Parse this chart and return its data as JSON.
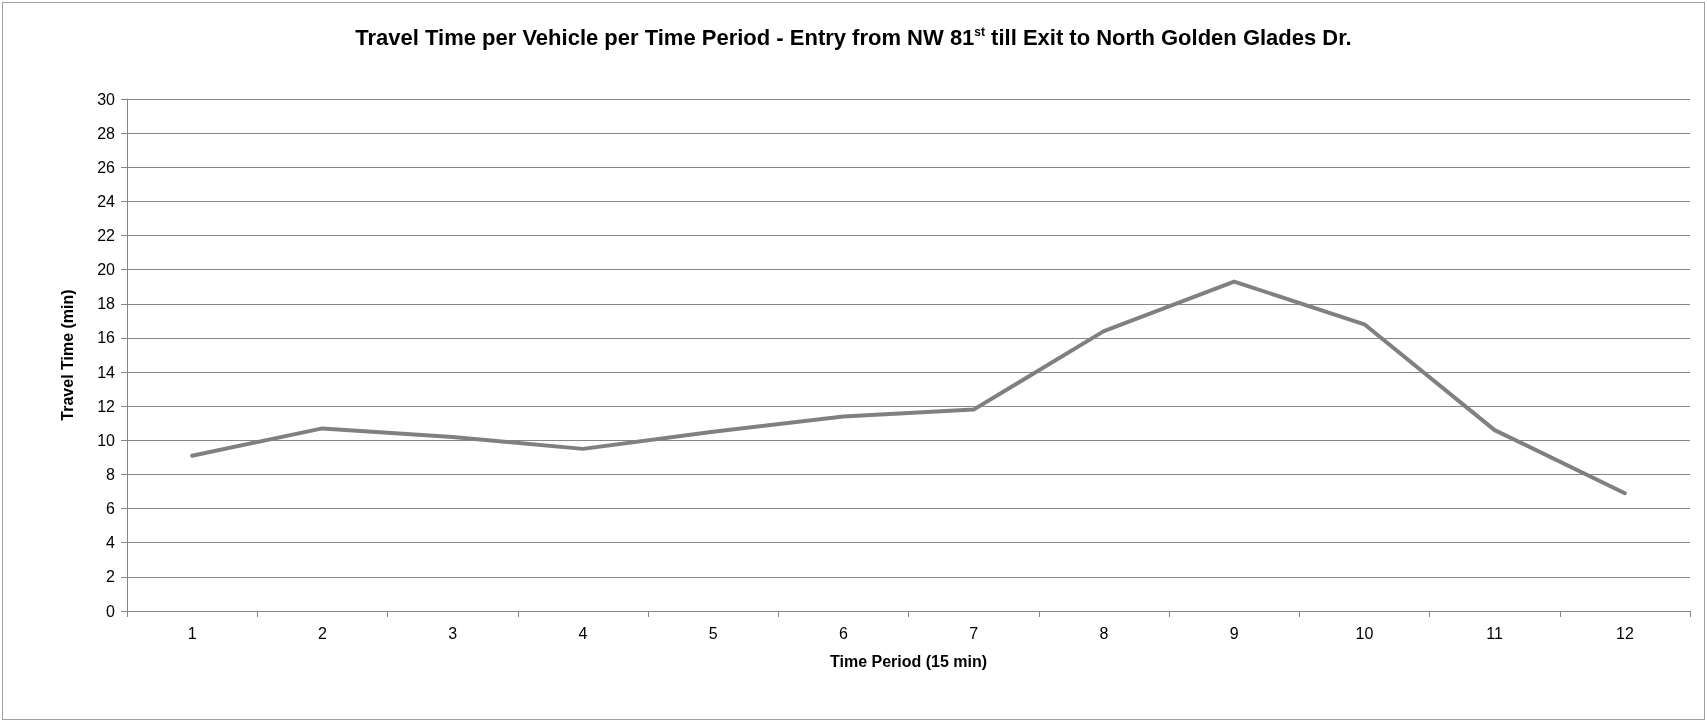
{
  "chart_data": {
    "type": "line",
    "title": "Travel Time per Vehicle per Time Period - Entry from NW 81$^{st}$ till Exit to North Golden Glades Dr.",
    "xlabel": "Time Period (15 min)",
    "ylabel": "Travel Time (min)",
    "categories": [
      "1",
      "2",
      "3",
      "4",
      "5",
      "6",
      "7",
      "8",
      "9",
      "10",
      "11",
      "12"
    ],
    "series": [
      {
        "color": "#808080",
        "values": [
          9.1,
          10.7,
          10.2,
          9.5,
          10.5,
          11.4,
          11.8,
          16.4,
          19.3,
          16.8,
          10.6,
          6.9
        ]
      }
    ],
    "ylim": [
      0,
      30
    ],
    "yticks": [
      0,
      2,
      4,
      6,
      8,
      10,
      12,
      14,
      16,
      18,
      20,
      22,
      24,
      26,
      28,
      30
    ],
    "grid": "y",
    "marker": "none",
    "line_style": "solid"
  }
}
